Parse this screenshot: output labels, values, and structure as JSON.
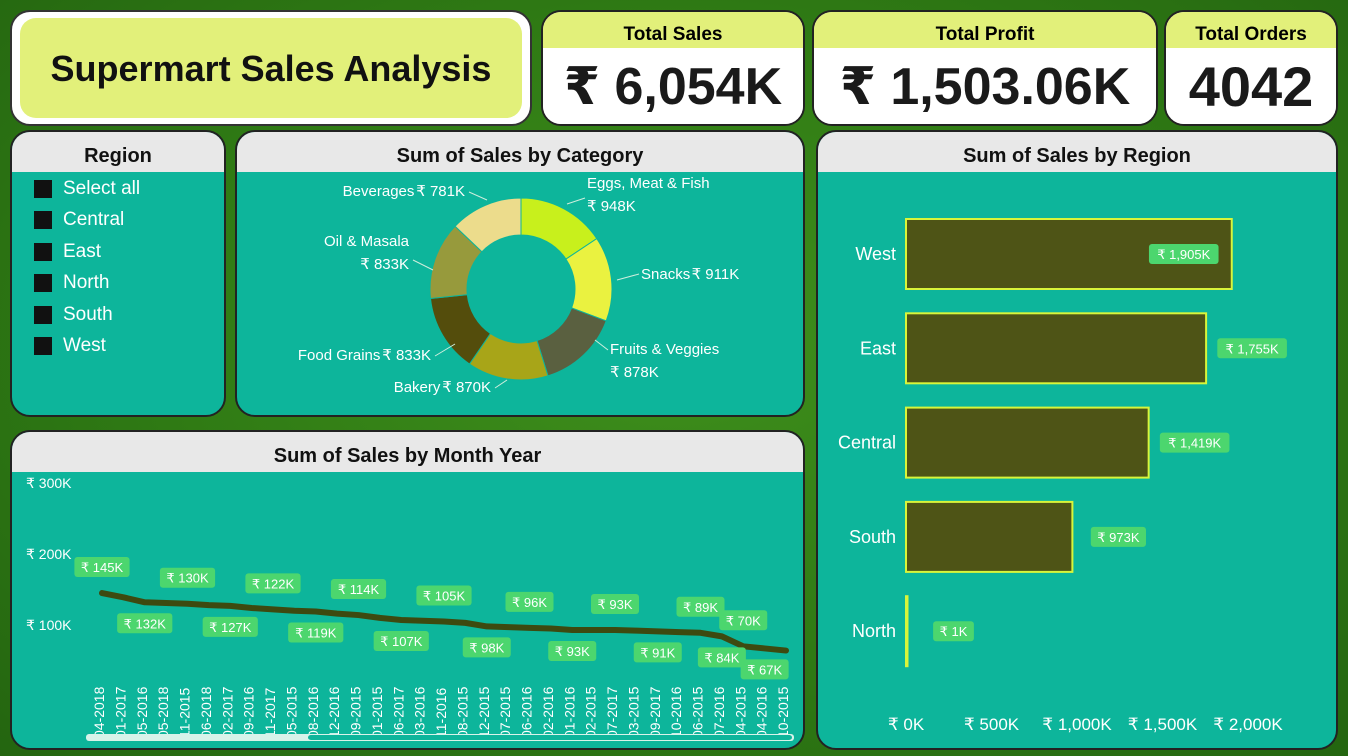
{
  "title": "Supermart Sales Analysis",
  "kpis": [
    {
      "label": "Total Sales",
      "value": "₹ 6,054K"
    },
    {
      "label": "Total Profit",
      "value": "₹ 1,503.06K"
    },
    {
      "label": "Total Orders",
      "value": "4042"
    }
  ],
  "region_slicer": {
    "title": "Region",
    "items": [
      "Select all",
      "Central",
      "East",
      "North",
      "South",
      "West"
    ]
  },
  "colors": {
    "teal": "#0db59b",
    "olive_bar": "#4e5416",
    "bar_outline": "#d8f53a",
    "label_green": "#4cd66e",
    "kpi_header": "#e2f07a",
    "line": "#3d4a10"
  },
  "chart_data": [
    {
      "type": "pie",
      "title": "Sum of Sales by Category",
      "categories": [
        "Eggs, Meat & Fish",
        "Snacks",
        "Fruits & Veggies",
        "Bakery",
        "Food Grains",
        "Oil & Masala",
        "Beverages"
      ],
      "values": [
        948,
        911,
        878,
        870,
        833,
        833,
        781
      ],
      "labels": [
        "₹ 948K",
        "₹ 911K",
        "₹ 878K",
        "₹ 870K",
        "₹ 833K",
        "₹ 833K",
        "₹ 781K"
      ],
      "colors": [
        "#c8f01c",
        "#eaf240",
        "#5a6040",
        "#a8a518",
        "#544d0c",
        "#979a3c",
        "#ecdc8c"
      ]
    },
    {
      "type": "bar",
      "title": "Sum of Sales by Region",
      "categories": [
        "West",
        "East",
        "Central",
        "South",
        "North"
      ],
      "values": [
        1905,
        1755,
        1419,
        973,
        1
      ],
      "labels": [
        "₹ 1,905K",
        "₹ 1,755K",
        "₹ 1,419K",
        "₹ 973K",
        "₹ 1K"
      ],
      "xlim": [
        0,
        2000
      ],
      "xticks": [
        "₹ 0K",
        "₹ 500K",
        "₹ 1,000K",
        "₹ 1,500K",
        "₹ 2,000K"
      ]
    },
    {
      "type": "line",
      "title": "Sum of Sales by Month Year",
      "categories": [
        "04-2018",
        "01-2017",
        "05-2016",
        "05-2018",
        "11-2015",
        "06-2018",
        "02-2017",
        "09-2016",
        "11-2017",
        "05-2015",
        "08-2016",
        "12-2016",
        "09-2015",
        "01-2015",
        "06-2017",
        "03-2016",
        "11-2016",
        "08-2015",
        "12-2015",
        "07-2015",
        "06-2016",
        "02-2016",
        "01-2016",
        "02-2015",
        "07-2017",
        "03-2015",
        "09-2017",
        "10-2016",
        "06-2015",
        "07-2016",
        "04-2015",
        "04-2016",
        "10-2015"
      ],
      "values": [
        145,
        139,
        132,
        131,
        130,
        128,
        127,
        124,
        122,
        120,
        119,
        116,
        114,
        110,
        107,
        106,
        105,
        103,
        98,
        97,
        96,
        95,
        93,
        93,
        93,
        92,
        91,
        90,
        89,
        84,
        70,
        67,
        64
      ],
      "labeled": [
        {
          "i": 0,
          "text": "₹ 145K"
        },
        {
          "i": 2,
          "text": "₹ 132K"
        },
        {
          "i": 4,
          "text": "₹ 130K"
        },
        {
          "i": 6,
          "text": "₹ 127K"
        },
        {
          "i": 8,
          "text": "₹ 122K"
        },
        {
          "i": 10,
          "text": "₹ 119K"
        },
        {
          "i": 12,
          "text": "₹ 114K"
        },
        {
          "i": 14,
          "text": "₹ 107K"
        },
        {
          "i": 16,
          "text": "₹ 105K"
        },
        {
          "i": 18,
          "text": "₹ 98K"
        },
        {
          "i": 20,
          "text": "₹ 96K"
        },
        {
          "i": 22,
          "text": "₹ 93K"
        },
        {
          "i": 24,
          "text": "₹ 93K"
        },
        {
          "i": 26,
          "text": "₹ 91K"
        },
        {
          "i": 28,
          "text": "₹ 89K"
        },
        {
          "i": 29,
          "text": "₹ 84K"
        },
        {
          "i": 30,
          "text": "₹ 70K"
        },
        {
          "i": 31,
          "text": "₹ 67K"
        }
      ],
      "ylim": [
        0,
        300
      ],
      "yticks": [
        "₹ 100K",
        "₹ 200K",
        "₹ 300K"
      ],
      "ytick_values": [
        100,
        200,
        300
      ]
    }
  ]
}
